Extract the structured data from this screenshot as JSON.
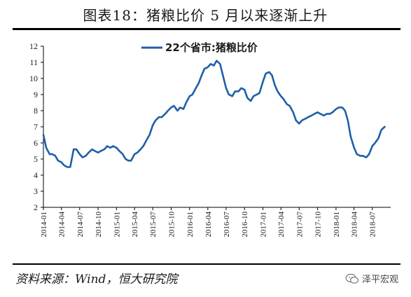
{
  "figure": {
    "title": "图表18：猪粮比价 5 月以来逐渐上升",
    "source": "资料来源：Wind，恒大研究院",
    "watermark": "泽平宏观"
  },
  "colors": {
    "line": "#1f5fa8",
    "axis": "#000000",
    "text": "#1a1a1a"
  },
  "chart_data": {
    "type": "line",
    "title": "",
    "xlabel": "",
    "ylabel": "",
    "ylim": [
      2,
      12
    ],
    "yticks": [
      2,
      3,
      4,
      5,
      6,
      7,
      8,
      9,
      10,
      11,
      12
    ],
    "xlim": [
      "2014-01",
      "2018-10"
    ],
    "xticks": [
      "2014-01",
      "2014-04",
      "2014-07",
      "2014-10",
      "2015-01",
      "2015-04",
      "2015-07",
      "2015-10",
      "2016-01",
      "2016-04",
      "2016-07",
      "2016-10",
      "2017-01",
      "2017-04",
      "2017-07",
      "2017-10",
      "2018-01",
      "2018-04",
      "2018-07"
    ],
    "grid": false,
    "legend": {
      "position": "top-center"
    },
    "series": [
      {
        "name": "22个省市:猪粮比价",
        "color": "#1f5fa8",
        "x": [
          "2014-01-01",
          "2014-01-15",
          "2014-02-01",
          "2014-02-15",
          "2014-03-01",
          "2014-03-15",
          "2014-04-01",
          "2014-04-15",
          "2014-05-01",
          "2014-05-15",
          "2014-06-01",
          "2014-06-15",
          "2014-07-01",
          "2014-07-15",
          "2014-08-01",
          "2014-08-15",
          "2014-09-01",
          "2014-09-15",
          "2014-10-01",
          "2014-10-15",
          "2014-11-01",
          "2014-11-15",
          "2014-12-01",
          "2014-12-15",
          "2015-01-01",
          "2015-01-15",
          "2015-02-01",
          "2015-02-15",
          "2015-03-01",
          "2015-03-15",
          "2015-04-01",
          "2015-04-15",
          "2015-05-01",
          "2015-05-15",
          "2015-06-01",
          "2015-06-15",
          "2015-07-01",
          "2015-07-15",
          "2015-08-01",
          "2015-08-15",
          "2015-09-01",
          "2015-09-15",
          "2015-10-01",
          "2015-10-15",
          "2015-11-01",
          "2015-11-15",
          "2015-12-01",
          "2015-12-15",
          "2016-01-01",
          "2016-01-15",
          "2016-02-01",
          "2016-02-15",
          "2016-03-01",
          "2016-03-15",
          "2016-04-01",
          "2016-04-15",
          "2016-05-01",
          "2016-05-15",
          "2016-06-01",
          "2016-06-15",
          "2016-07-01",
          "2016-07-15",
          "2016-08-01",
          "2016-08-15",
          "2016-09-01",
          "2016-09-15",
          "2016-10-01",
          "2016-10-15",
          "2016-11-01",
          "2016-11-15",
          "2016-12-01",
          "2016-12-15",
          "2017-01-01",
          "2017-01-15",
          "2017-02-01",
          "2017-02-15",
          "2017-03-01",
          "2017-03-15",
          "2017-04-01",
          "2017-04-15",
          "2017-05-01",
          "2017-05-15",
          "2017-06-01",
          "2017-06-15",
          "2017-07-01",
          "2017-07-15",
          "2017-08-01",
          "2017-08-15",
          "2017-09-01",
          "2017-09-15",
          "2017-10-01",
          "2017-10-15",
          "2017-11-01",
          "2017-11-15",
          "2017-12-01",
          "2017-12-15",
          "2018-01-01",
          "2018-01-15",
          "2018-02-01",
          "2018-02-15",
          "2018-03-01",
          "2018-03-15",
          "2018-04-01",
          "2018-04-15",
          "2018-05-01",
          "2018-05-15",
          "2018-06-01",
          "2018-06-15",
          "2018-07-01",
          "2018-07-15",
          "2018-08-01",
          "2018-08-15",
          "2018-09-01"
        ],
        "values": [
          6.5,
          5.7,
          5.3,
          5.3,
          5.2,
          4.9,
          4.8,
          4.6,
          4.5,
          4.5,
          5.6,
          5.6,
          5.3,
          5.1,
          5.2,
          5.4,
          5.6,
          5.5,
          5.4,
          5.5,
          5.6,
          5.8,
          5.7,
          5.8,
          5.7,
          5.5,
          5.3,
          5.0,
          4.9,
          4.9,
          5.3,
          5.4,
          5.6,
          5.8,
          6.2,
          6.5,
          7.1,
          7.4,
          7.6,
          7.6,
          7.8,
          8.0,
          8.2,
          8.3,
          8.0,
          8.2,
          8.1,
          8.5,
          8.9,
          9.0,
          9.4,
          9.7,
          10.2,
          10.6,
          10.7,
          10.9,
          10.8,
          11.1,
          10.9,
          10.2,
          9.4,
          9.0,
          8.9,
          9.2,
          9.2,
          9.4,
          9.3,
          8.8,
          8.6,
          8.9,
          9.0,
          9.1,
          9.8,
          10.3,
          10.4,
          10.2,
          9.6,
          9.2,
          8.9,
          8.7,
          8.4,
          8.3,
          7.9,
          7.4,
          7.2,
          7.4,
          7.5,
          7.6,
          7.7,
          7.8,
          7.9,
          7.8,
          7.7,
          7.8,
          7.8,
          7.9,
          8.1,
          8.2,
          8.2,
          8.0,
          7.4,
          6.4,
          5.7,
          5.3,
          5.2,
          5.2,
          5.1,
          5.3,
          5.8,
          6.0,
          6.3,
          6.8,
          7.0
        ]
      }
    ]
  }
}
